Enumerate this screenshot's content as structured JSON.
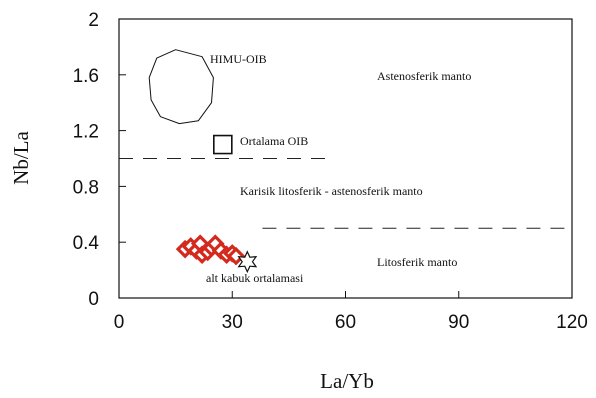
{
  "chart_data": {
    "type": "scatter",
    "xlabel": "La/Yb",
    "ylabel": "Nb/La",
    "xlim": [
      0,
      120
    ],
    "ylim": [
      0,
      2
    ],
    "xticks": [
      "0",
      "30",
      "60",
      "90",
      "120"
    ],
    "yticks": [
      "0",
      "0.4",
      "0.8",
      "1.2",
      "1.6",
      "2"
    ],
    "series": [
      {
        "marker": "diamond",
        "color": "#d42a1e",
        "points": [
          {
            "x": 17.5,
            "y": 0.35
          },
          {
            "x": 19,
            "y": 0.37
          },
          {
            "x": 20.5,
            "y": 0.34
          },
          {
            "x": 21.5,
            "y": 0.39
          },
          {
            "x": 22,
            "y": 0.31
          },
          {
            "x": 23.5,
            "y": 0.33
          },
          {
            "x": 24.5,
            "y": 0.36
          },
          {
            "x": 25.5,
            "y": 0.39
          },
          {
            "x": 27,
            "y": 0.34
          },
          {
            "x": 28.5,
            "y": 0.31
          },
          {
            "x": 30,
            "y": 0.32
          },
          {
            "x": 31,
            "y": 0.3
          }
        ]
      }
    ],
    "reference_points": [
      {
        "label": "Ortalama OIB",
        "marker": "square",
        "x": 27.5,
        "y": 1.1
      },
      {
        "label": "alt kabuk ortalamasi",
        "marker": "star",
        "x": 34,
        "y": 0.26
      }
    ],
    "regions": [
      {
        "label": "HIMU-OIB",
        "shape": "closed-curve"
      },
      {
        "label": "Astenosferik  manto"
      },
      {
        "label": "Karisik litosferik - astenosferik manto"
      },
      {
        "label": "Litosferik manto"
      }
    ],
    "boundary_lines": [
      {
        "style": "dashed",
        "y": 1.0,
        "x": [
          0,
          56
        ]
      },
      {
        "style": "dashed",
        "y": 0.5,
        "x": [
          38,
          120
        ]
      }
    ]
  }
}
